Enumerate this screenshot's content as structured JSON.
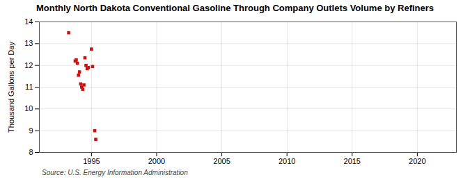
{
  "chart_data": {
    "type": "scatter",
    "title": "Monthly North Dakota Conventional Gasoline Through Company Outlets Volume by Refiners",
    "ylabel": "Thousand Gallons per Day",
    "source": "Source: U.S. Energy Information Administration",
    "x": [
      1993.25,
      1993.75,
      1993.83,
      1993.92,
      1994.0,
      1994.08,
      1994.17,
      1994.25,
      1994.33,
      1994.42,
      1994.5,
      1994.58,
      1994.67,
      1994.75,
      1995.0,
      1995.08,
      1995.25,
      1995.33
    ],
    "values": [
      13.5,
      12.2,
      12.25,
      12.1,
      11.55,
      11.7,
      11.15,
      11.0,
      10.9,
      11.1,
      12.35,
      12.0,
      11.85,
      11.9,
      12.75,
      11.95,
      9.0,
      8.6
    ],
    "color": "#cc1111",
    "marker": "square",
    "xlim": [
      1991,
      2023
    ],
    "ylim": [
      8,
      14
    ],
    "xticks": [
      1995,
      2000,
      2005,
      2010,
      2015,
      2020
    ],
    "yticks": [
      8,
      9,
      10,
      11,
      12,
      13,
      14
    ],
    "grid": true
  }
}
